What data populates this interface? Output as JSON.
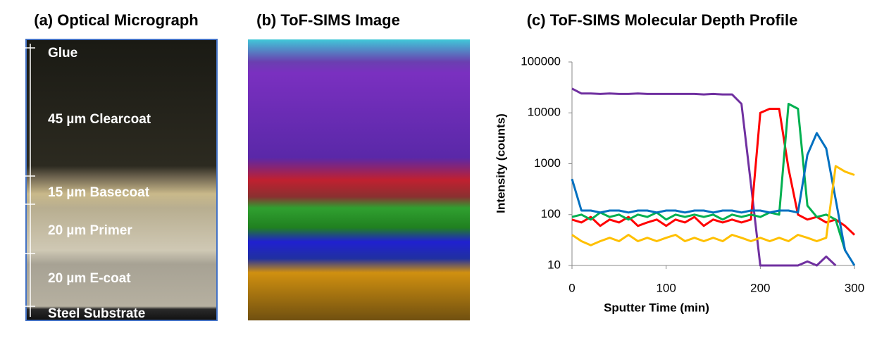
{
  "panels": {
    "a": {
      "title": "(a) Optical Micrograph",
      "layers": [
        "Glue",
        "45 µm Clearcoat",
        "15 µm Basecoat",
        "20 µm Primer",
        "20 µm E-coat",
        "Steel Substrate"
      ]
    },
    "b": {
      "title": "(b) ToF-SIMS Image"
    }
  },
  "chart_data": {
    "type": "line",
    "title": "(c) ToF-SIMS Molecular Depth Profile",
    "x_label": "Sputter Time (min)",
    "y_label": "Intensity (counts)",
    "x": [
      0,
      10,
      20,
      30,
      40,
      50,
      60,
      70,
      80,
      90,
      100,
      110,
      120,
      130,
      140,
      150,
      160,
      170,
      180,
      190,
      200,
      210,
      220,
      230,
      240,
      250,
      260,
      270,
      280,
      290,
      300
    ],
    "xlim": [
      0,
      300
    ],
    "xticks": [
      0,
      100,
      200,
      300
    ],
    "ylim": [
      10,
      100000
    ],
    "yticks": [
      10,
      100,
      1000,
      10000,
      100000
    ],
    "log_y": true,
    "series": [
      {
        "color": "#7030a0",
        "values": [
          30000,
          24000,
          24000,
          23500,
          24000,
          23500,
          23500,
          24000,
          23500,
          23500,
          23500,
          23500,
          23500,
          23500,
          23000,
          23500,
          23000,
          23000,
          15000,
          400,
          10,
          10,
          10,
          10,
          10,
          12,
          10,
          15,
          10,
          null,
          null
        ]
      },
      {
        "color": "#ff0000",
        "values": [
          80,
          70,
          90,
          60,
          80,
          70,
          90,
          60,
          70,
          80,
          60,
          80,
          70,
          90,
          60,
          80,
          70,
          80,
          70,
          80,
          10000,
          12000,
          12000,
          800,
          100,
          80,
          90,
          70,
          80,
          60,
          40
        ]
      },
      {
        "color": "#00b050",
        "values": [
          90,
          100,
          80,
          110,
          90,
          100,
          80,
          100,
          90,
          110,
          80,
          100,
          90,
          100,
          90,
          100,
          80,
          100,
          90,
          100,
          90,
          110,
          100,
          15000,
          12000,
          150,
          90,
          100,
          80,
          20,
          null
        ]
      },
      {
        "color": "#0070c0",
        "values": [
          500,
          120,
          120,
          110,
          120,
          120,
          110,
          120,
          120,
          110,
          120,
          120,
          110,
          120,
          120,
          110,
          120,
          120,
          110,
          120,
          120,
          110,
          120,
          120,
          110,
          1500,
          4000,
          2000,
          200,
          20,
          10
        ]
      },
      {
        "color": "#ffc000",
        "values": [
          40,
          30,
          25,
          30,
          35,
          30,
          40,
          30,
          35,
          30,
          35,
          40,
          30,
          35,
          30,
          35,
          30,
          40,
          35,
          30,
          35,
          30,
          35,
          30,
          40,
          35,
          30,
          35,
          900,
          700,
          600
        ]
      }
    ]
  }
}
